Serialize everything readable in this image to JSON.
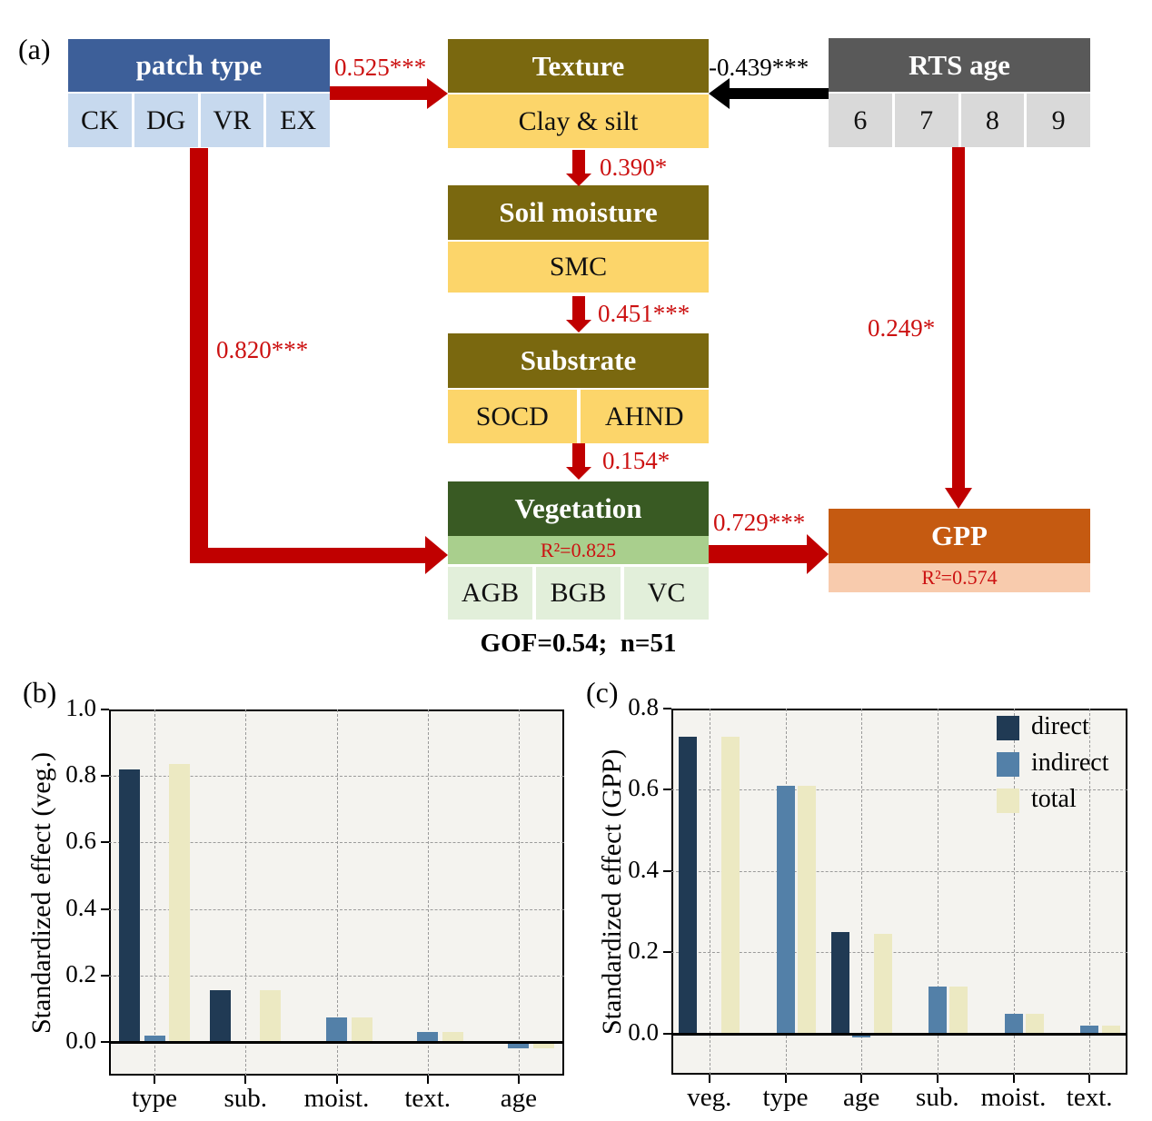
{
  "panels": {
    "a": {
      "label": "(a)"
    },
    "b": {
      "label": "(b)"
    },
    "c": {
      "label": "(c)"
    }
  },
  "sem": {
    "gof_text": "GOF=0.54;  n=51",
    "nodes": {
      "patch_type": {
        "title": "patch type",
        "items": [
          "CK",
          "DG",
          "VR",
          "EX"
        ]
      },
      "texture": {
        "title": "Texture",
        "items": [
          "Clay & silt"
        ]
      },
      "rts_age": {
        "title": "RTS age",
        "items": [
          "6",
          "7",
          "8",
          "9"
        ]
      },
      "soil_moisture": {
        "title": "Soil moisture",
        "items": [
          "SMC"
        ]
      },
      "substrate": {
        "title": "Substrate",
        "items": [
          "SOCD",
          "AHND"
        ]
      },
      "vegetation": {
        "title": "Vegetation",
        "r2": "R²=0.825",
        "items": [
          "AGB",
          "BGB",
          "VC"
        ]
      },
      "gpp": {
        "title": "GPP",
        "r2": "R²=0.574"
      }
    },
    "paths": {
      "patch_to_texture": "0.525***",
      "age_to_texture": "-0.439***",
      "texture_to_moisture": "0.390*",
      "moisture_to_substrate": "0.451***",
      "substrate_to_vegetation": "0.154*",
      "patch_to_vegetation": "0.820***",
      "age_to_gpp": "0.249*",
      "vegetation_to_gpp": "0.729***"
    }
  },
  "palette": {
    "patch_header": "#3d5f99",
    "patch_cell": "#c7d9ee",
    "olive_header": "#7a680f",
    "yellow_cell": "#fcd56a",
    "gray_header": "#595959",
    "gray_cell": "#d9d9d9",
    "green_header": "#395a23",
    "green_strip": "#a9cf8d",
    "green_cell": "#e2efda",
    "orange_header": "#c55a11",
    "orange_strip": "#f8cbad",
    "arrow_red": "#c00000",
    "arrow_black": "#000000",
    "label_red": "#cc1111",
    "plot_bg": "#f4f3ef",
    "series": {
      "direct": "#203a54",
      "indirect": "#5380a8",
      "total": "#ece9c2"
    }
  },
  "chart_data": [
    {
      "id": "b",
      "type": "bar",
      "ylabel": "Standardized effect (veg.)",
      "categories": [
        "type",
        "sub.",
        "moist.",
        "text.",
        "age"
      ],
      "series": [
        {
          "name": "direct",
          "values": [
            0.82,
            0.155,
            0,
            0,
            0
          ]
        },
        {
          "name": "indirect",
          "values": [
            0.02,
            0,
            0.075,
            0.03,
            -0.02
          ]
        },
        {
          "name": "total",
          "values": [
            0.835,
            0.155,
            0.075,
            0.03,
            -0.02
          ]
        }
      ],
      "yticks": [
        0.0,
        0.2,
        0.4,
        0.6,
        0.8,
        1.0
      ],
      "ylim": [
        -0.1,
        1.0
      ],
      "grid": true,
      "legend": false
    },
    {
      "id": "c",
      "type": "bar",
      "ylabel": "Standardized effect (GPP)",
      "categories": [
        "veg.",
        "type",
        "age",
        "sub.",
        "moist.",
        "text."
      ],
      "series": [
        {
          "name": "direct",
          "values": [
            0.73,
            0,
            0.25,
            0,
            0,
            0
          ]
        },
        {
          "name": "indirect",
          "values": [
            0,
            0.61,
            -0.01,
            0.115,
            0.05,
            0.02
          ]
        },
        {
          "name": "total",
          "values": [
            0.73,
            0.61,
            0.245,
            0.115,
            0.05,
            0.02
          ]
        }
      ],
      "yticks": [
        0.0,
        0.2,
        0.4,
        0.6,
        0.8
      ],
      "ylim": [
        -0.1,
        0.8
      ],
      "grid": true,
      "legend": true,
      "legend_entries": [
        "direct",
        "indirect",
        "total"
      ]
    }
  ]
}
